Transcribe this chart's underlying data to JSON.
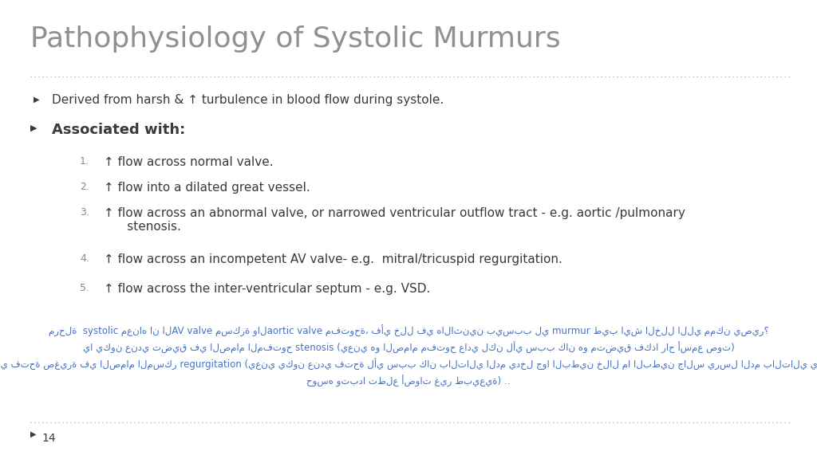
{
  "title": "Pathophysiology of Systolic Murmurs",
  "title_fontsize": 26,
  "title_color": "#909090",
  "bg_color": "#ffffff",
  "bullet1": "Derived from harsh & ↑ turbulence in blood flow during systole.",
  "bullet2_bold": "Associated with:",
  "subitems": [
    "↑ flow across normal valve.",
    "↑ flow into a dilated great vessel.",
    "↑ flow across an abnormal valve, or narrowed ventricular outflow tract - e.g. aortic /pulmonary\n      stenosis.",
    "↑ flow across an incompetent AV valve- e.g.  mitral/tricuspid regurgitation.",
    "↑ flow across the inter-ventricular septum - e.g. VSD."
  ],
  "arabic_lines": [
    "مرحلة  systolic معناه ان الAV valve مسكرة والaortic valve مفتوحة، فأي خلل في هالاثنين بيسبب لي murmur طيب ايش الخلل اللي ممكن يصير؟",
    "يا يكون عندي تضيق في الصمام المفتوح stenosis (يعني هو الصمام مفتوح عادي لكن لأي سبب كان هو متضيق فكذا راح أسمع صوت)",
    "أو يكون عندي فتحة صغيرة في الصمام المسكر regurgitation (يعني يكون عندي فتحة لأي سبب كان بالتالي الدم يدخل جوا البطين خلال ما البطين جالس يرسل الدم بالتالي ييصير فيه",
    "حوسه وتبدا تطلع أصوات غير طبيعية) .."
  ],
  "arabic_color": "#4472c4",
  "footer_num": "14",
  "bullet_color": "#3a3a3a",
  "separator_color": "#aaaaaa",
  "number_color": "#888888"
}
